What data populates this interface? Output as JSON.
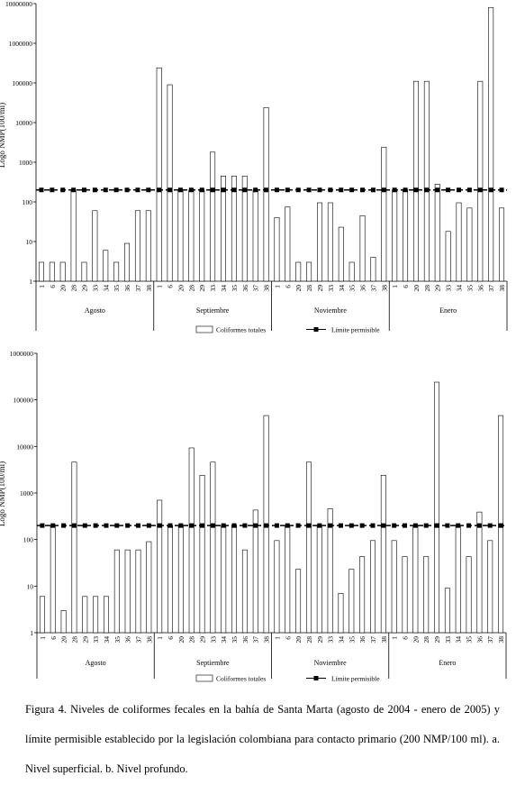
{
  "caption": "Figura 4. Niveles de coliformes fecales en la bahía de Santa Marta (agosto de 2004 - enero de 2005) y límite permisible establecido por la legislación colombiana para contacto primario (200 NMP/100 ml). a. Nivel superficial. b. Nivel profundo.",
  "chart_data": [
    {
      "type": "bar",
      "ylabel": "Logo NMP(100/ml)",
      "yscale": "log",
      "ylim": [
        1,
        10000000
      ],
      "yticks": [
        "1",
        "10",
        "100",
        "1000",
        "10000",
        "100000",
        "1000000",
        "10000000"
      ],
      "groups": [
        "Agosto",
        "Septiembre",
        "Noviembre",
        "Enero"
      ],
      "categories": [
        "1",
        "6",
        "20",
        "28",
        "29",
        "33",
        "34",
        "35",
        "36",
        "37",
        "38"
      ],
      "limit": 200,
      "legend": [
        "Coliformes totales",
        "Límite permisible"
      ],
      "legend_position": "bottom",
      "series": [
        {
          "name": "Coliformes totales",
          "values": [
            [
              3,
              3,
              3,
              200,
              3,
              60,
              6,
              3,
              9,
              60,
              60
            ],
            [
              240000,
              90000,
              200,
              200,
              200,
              1800,
              450,
              450,
              450,
              200,
              24000
            ],
            [
              40,
              75,
              3,
              3,
              95,
              95,
              23,
              3,
              45,
              4,
              2400
            ],
            [
              200,
              200,
              110000,
              110000,
              280,
              18,
              95,
              70,
              110000,
              8000000,
              70
            ]
          ]
        },
        {
          "name": "Límite permisible",
          "value": 200
        }
      ]
    },
    {
      "type": "bar",
      "ylabel": "Logo NMP(100/ml)",
      "yscale": "log",
      "ylim": [
        1,
        1000000
      ],
      "yticks": [
        "1",
        "10",
        "100",
        "1000",
        "10000",
        "100000",
        "1000000"
      ],
      "groups": [
        "Agosto",
        "Septiembre",
        "Noviembre",
        "Enero"
      ],
      "categories": [
        "1",
        "6",
        "20",
        "28",
        "29",
        "33",
        "34",
        "35",
        "36",
        "37",
        "38"
      ],
      "limit": 200,
      "legend": [
        "Coliformes totales",
        "Límite permisible"
      ],
      "legend_position": "bottom",
      "series": [
        {
          "name": "Coliformes totales",
          "values": [
            [
              6,
              200,
              3,
              4600,
              6,
              6,
              6,
              60,
              60,
              60,
              90
            ],
            [
              700,
              200,
              200,
              9300,
              2400,
              4600,
              200,
              200,
              60,
              430,
              46000
            ],
            [
              95,
              200,
              23,
              4600,
              200,
              460,
              7,
              23,
              43,
              95,
              2400
            ],
            [
              95,
              43,
              200,
              43,
              240000,
              9,
              200,
              43,
              390,
              95,
              46000
            ]
          ]
        },
        {
          "name": "Límite permisible",
          "value": 200
        }
      ]
    }
  ]
}
